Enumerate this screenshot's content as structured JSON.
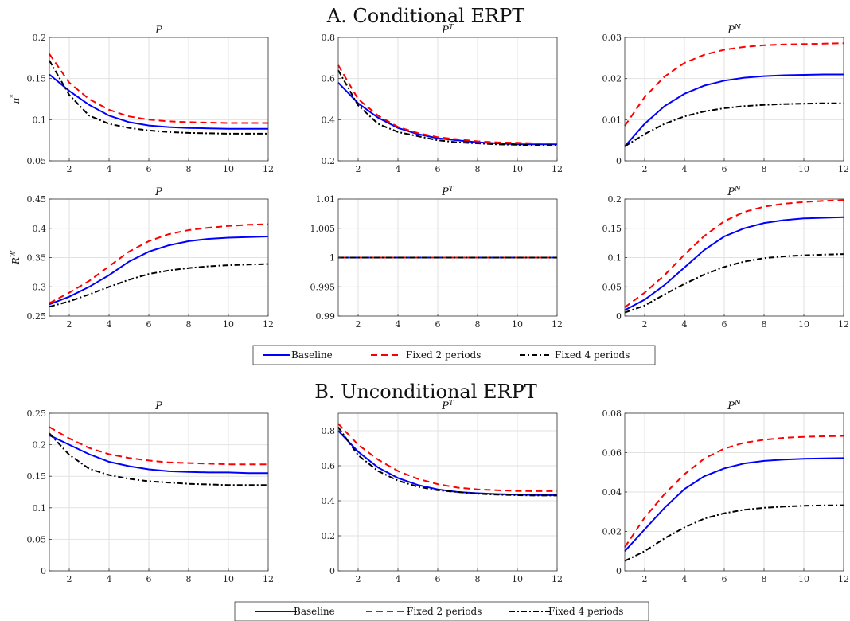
{
  "panels": {
    "A": {
      "title": "A. Conditional ERPT"
    },
    "B": {
      "title": "B. Unconditional ERPT"
    }
  },
  "plot_titles": {
    "P": "P",
    "PT_base": "P",
    "PT_sup": "T",
    "PN_base": "P",
    "PN_sup": "N"
  },
  "row_labels": {
    "pi": {
      "base": "π",
      "sup": "*"
    },
    "RW": {
      "base": "R",
      "sup": "W"
    }
  },
  "legend": {
    "entries": [
      {
        "label": "Baseline",
        "color": "#0000ff",
        "dash": "solid"
      },
      {
        "label": "Fixed 2 periods",
        "color": "#ff0000",
        "dash": "dashed"
      },
      {
        "label": "Fixed 4 periods",
        "color": "#000000",
        "dash": "dashdot"
      }
    ]
  },
  "chart_data": [
    {
      "type": "line",
      "panel": "A",
      "title": "P",
      "ylabel": "π*",
      "x": [
        1,
        2,
        3,
        4,
        5,
        6,
        7,
        8,
        9,
        10,
        11,
        12
      ],
      "xticks": [
        2,
        4,
        6,
        8,
        10,
        12
      ],
      "xlim": [
        1,
        12
      ],
      "ylim": [
        0.05,
        0.2
      ],
      "yticks": [
        0.05,
        0.1,
        0.15,
        0.2
      ],
      "ytick_labels": [
        "0.05",
        "0.1",
        "0.15",
        "0.2"
      ],
      "series": [
        {
          "name": "Baseline",
          "values": [
            0.155,
            0.135,
            0.118,
            0.105,
            0.097,
            0.093,
            0.091,
            0.09,
            0.0895,
            0.089,
            0.089,
            0.089
          ]
        },
        {
          "name": "Fixed 2 periods",
          "values": [
            0.18,
            0.145,
            0.125,
            0.112,
            0.104,
            0.1,
            0.098,
            0.097,
            0.0965,
            0.096,
            0.096,
            0.096
          ]
        },
        {
          "name": "Fixed 4 periods",
          "values": [
            0.172,
            0.13,
            0.105,
            0.095,
            0.09,
            0.087,
            0.085,
            0.084,
            0.0835,
            0.083,
            0.083,
            0.083
          ]
        }
      ]
    },
    {
      "type": "line",
      "panel": "A",
      "title": "P^T",
      "x": [
        1,
        2,
        3,
        4,
        5,
        6,
        7,
        8,
        9,
        10,
        11,
        12
      ],
      "xticks": [
        2,
        4,
        6,
        8,
        10,
        12
      ],
      "xlim": [
        1,
        12
      ],
      "ylim": [
        0.2,
        0.8
      ],
      "yticks": [
        0.2,
        0.4,
        0.6,
        0.8
      ],
      "ytick_labels": [
        "0.2",
        "0.4",
        "0.6",
        "0.8"
      ],
      "series": [
        {
          "name": "Baseline",
          "values": [
            0.58,
            0.48,
            0.41,
            0.36,
            0.33,
            0.31,
            0.3,
            0.29,
            0.285,
            0.28,
            0.28,
            0.28
          ]
        },
        {
          "name": "Fixed 2 periods",
          "values": [
            0.665,
            0.5,
            0.42,
            0.365,
            0.335,
            0.315,
            0.305,
            0.295,
            0.29,
            0.288,
            0.285,
            0.285
          ]
        },
        {
          "name": "Fixed 4 periods",
          "values": [
            0.64,
            0.47,
            0.38,
            0.34,
            0.32,
            0.3,
            0.29,
            0.285,
            0.28,
            0.278,
            0.276,
            0.276
          ]
        }
      ]
    },
    {
      "type": "line",
      "panel": "A",
      "title": "P^N",
      "x": [
        1,
        2,
        3,
        4,
        5,
        6,
        7,
        8,
        9,
        10,
        11,
        12
      ],
      "xticks": [
        2,
        4,
        6,
        8,
        10,
        12
      ],
      "xlim": [
        1,
        12
      ],
      "ylim": [
        0,
        0.03
      ],
      "yticks": [
        0,
        0.01,
        0.02,
        0.03
      ],
      "ytick_labels": [
        "0",
        "0.01",
        "0.02",
        "0.03"
      ],
      "series": [
        {
          "name": "Baseline",
          "values": [
            0.0035,
            0.009,
            0.0133,
            0.0163,
            0.0183,
            0.0195,
            0.0202,
            0.0206,
            0.0208,
            0.0209,
            0.021,
            0.021
          ]
        },
        {
          "name": "Fixed 2 periods",
          "values": [
            0.0085,
            0.0155,
            0.0205,
            0.0238,
            0.0258,
            0.027,
            0.0277,
            0.0281,
            0.0283,
            0.0284,
            0.0285,
            0.0286
          ]
        },
        {
          "name": "Fixed 4 periods",
          "values": [
            0.0035,
            0.0065,
            0.009,
            0.0108,
            0.012,
            0.0128,
            0.0133,
            0.0136,
            0.0138,
            0.0139,
            0.014,
            0.014
          ]
        }
      ]
    },
    {
      "type": "line",
      "panel": "A",
      "title": "P",
      "ylabel": "R^W",
      "x": [
        1,
        2,
        3,
        4,
        5,
        6,
        7,
        8,
        9,
        10,
        11,
        12
      ],
      "xticks": [
        2,
        4,
        6,
        8,
        10,
        12
      ],
      "xlim": [
        1,
        12
      ],
      "ylim": [
        0.25,
        0.45
      ],
      "yticks": [
        0.25,
        0.3,
        0.35,
        0.4,
        0.45
      ],
      "ytick_labels": [
        "0.25",
        "0.3",
        "0.35",
        "0.4",
        "0.45"
      ],
      "series": [
        {
          "name": "Baseline",
          "values": [
            0.27,
            0.283,
            0.3,
            0.32,
            0.343,
            0.36,
            0.371,
            0.378,
            0.382,
            0.384,
            0.385,
            0.386
          ]
        },
        {
          "name": "Fixed 2 periods",
          "values": [
            0.272,
            0.29,
            0.31,
            0.335,
            0.36,
            0.378,
            0.39,
            0.397,
            0.401,
            0.404,
            0.406,
            0.407
          ]
        },
        {
          "name": "Fixed 4 periods",
          "values": [
            0.266,
            0.275,
            0.287,
            0.3,
            0.312,
            0.322,
            0.328,
            0.332,
            0.335,
            0.337,
            0.338,
            0.339
          ]
        }
      ]
    },
    {
      "type": "line",
      "panel": "A",
      "title": "P^T",
      "x": [
        1,
        2,
        3,
        4,
        5,
        6,
        7,
        8,
        9,
        10,
        11,
        12
      ],
      "xticks": [
        2,
        4,
        6,
        8,
        10,
        12
      ],
      "xlim": [
        1,
        12
      ],
      "ylim": [
        0.99,
        1.01
      ],
      "yticks": [
        0.99,
        0.995,
        1,
        1.005,
        1.01
      ],
      "ytick_labels": [
        "0.99",
        "0.995",
        "1",
        "1.005",
        "1.01"
      ],
      "series": [
        {
          "name": "Baseline",
          "values": [
            1,
            1,
            1,
            1,
            1,
            1,
            1,
            1,
            1,
            1,
            1,
            1
          ]
        },
        {
          "name": "Fixed 2 periods",
          "values": [
            1,
            1,
            1,
            1,
            1,
            1,
            1,
            1,
            1,
            1,
            1,
            1
          ]
        },
        {
          "name": "Fixed 4 periods",
          "values": [
            1,
            1,
            1,
            1,
            1,
            1,
            1,
            1,
            1,
            1,
            1,
            1
          ]
        }
      ]
    },
    {
      "type": "line",
      "panel": "A",
      "title": "P^N",
      "x": [
        1,
        2,
        3,
        4,
        5,
        6,
        7,
        8,
        9,
        10,
        11,
        12
      ],
      "xticks": [
        2,
        4,
        6,
        8,
        10,
        12
      ],
      "xlim": [
        1,
        12
      ],
      "ylim": [
        0,
        0.2
      ],
      "yticks": [
        0,
        0.05,
        0.1,
        0.15,
        0.2
      ],
      "ytick_labels": [
        "0",
        "0.05",
        "0.1",
        "0.15",
        "0.2"
      ],
      "series": [
        {
          "name": "Baseline",
          "values": [
            0.01,
            0.028,
            0.053,
            0.083,
            0.113,
            0.136,
            0.15,
            0.159,
            0.164,
            0.167,
            0.168,
            0.169
          ]
        },
        {
          "name": "Fixed 2 periods",
          "values": [
            0.015,
            0.04,
            0.07,
            0.105,
            0.137,
            0.162,
            0.178,
            0.187,
            0.192,
            0.195,
            0.197,
            0.198
          ]
        },
        {
          "name": "Fixed 4 periods",
          "values": [
            0.006,
            0.018,
            0.037,
            0.055,
            0.071,
            0.084,
            0.093,
            0.099,
            0.102,
            0.104,
            0.105,
            0.106
          ]
        }
      ]
    },
    {
      "type": "line",
      "panel": "B",
      "title": "P",
      "x": [
        1,
        2,
        3,
        4,
        5,
        6,
        7,
        8,
        9,
        10,
        11,
        12
      ],
      "xticks": [
        2,
        4,
        6,
        8,
        10,
        12
      ],
      "xlim": [
        1,
        12
      ],
      "ylim": [
        0,
        0.25
      ],
      "yticks": [
        0,
        0.05,
        0.1,
        0.15,
        0.2,
        0.25
      ],
      "ytick_labels": [
        "0",
        "0.05",
        "0.1",
        "0.15",
        "0.2",
        "0.25"
      ],
      "series": [
        {
          "name": "Baseline",
          "values": [
            0.215,
            0.2,
            0.185,
            0.173,
            0.166,
            0.161,
            0.158,
            0.157,
            0.156,
            0.156,
            0.155,
            0.155
          ]
        },
        {
          "name": "Fixed 2 periods",
          "values": [
            0.228,
            0.21,
            0.195,
            0.185,
            0.179,
            0.175,
            0.172,
            0.171,
            0.17,
            0.169,
            0.169,
            0.169
          ]
        },
        {
          "name": "Fixed 4 periods",
          "values": [
            0.218,
            0.184,
            0.162,
            0.152,
            0.146,
            0.142,
            0.14,
            0.138,
            0.137,
            0.136,
            0.136,
            0.136
          ]
        }
      ]
    },
    {
      "type": "line",
      "panel": "B",
      "title": "P^T",
      "x": [
        1,
        2,
        3,
        4,
        5,
        6,
        7,
        8,
        9,
        10,
        11,
        12
      ],
      "xticks": [
        2,
        4,
        6,
        8,
        10,
        12
      ],
      "xlim": [
        1,
        12
      ],
      "ylim": [
        0,
        0.9
      ],
      "yticks": [
        0,
        0.2,
        0.4,
        0.6,
        0.8
      ],
      "ytick_labels": [
        "0",
        "0.2",
        "0.4",
        "0.6",
        "0.8"
      ],
      "series": [
        {
          "name": "Baseline",
          "values": [
            0.8,
            0.68,
            0.59,
            0.53,
            0.49,
            0.465,
            0.45,
            0.443,
            0.438,
            0.435,
            0.433,
            0.432
          ]
        },
        {
          "name": "Fixed 2 periods",
          "values": [
            0.84,
            0.72,
            0.635,
            0.57,
            0.525,
            0.495,
            0.475,
            0.465,
            0.46,
            0.456,
            0.455,
            0.455
          ]
        },
        {
          "name": "Fixed 4 periods",
          "values": [
            0.82,
            0.66,
            0.57,
            0.515,
            0.48,
            0.46,
            0.45,
            0.44,
            0.435,
            0.432,
            0.43,
            0.43
          ]
        }
      ]
    },
    {
      "type": "line",
      "panel": "B",
      "title": "P^N",
      "x": [
        1,
        2,
        3,
        4,
        5,
        6,
        7,
        8,
        9,
        10,
        11,
        12
      ],
      "xticks": [
        2,
        4,
        6,
        8,
        10,
        12
      ],
      "xlim": [
        1,
        12
      ],
      "ylim": [
        0,
        0.08
      ],
      "yticks": [
        0,
        0.02,
        0.04,
        0.06,
        0.08
      ],
      "ytick_labels": [
        "0",
        "0.02",
        "0.04",
        "0.06",
        "0.08"
      ],
      "series": [
        {
          "name": "Baseline",
          "values": [
            0.01,
            0.021,
            0.032,
            0.0415,
            0.048,
            0.052,
            0.0545,
            0.0558,
            0.0565,
            0.0569,
            0.0571,
            0.0572
          ]
        },
        {
          "name": "Fixed 2 periods",
          "values": [
            0.012,
            0.027,
            0.039,
            0.049,
            0.057,
            0.062,
            0.065,
            0.0665,
            0.0675,
            0.068,
            0.0683,
            0.0685
          ]
        },
        {
          "name": "Fixed 4 periods",
          "values": [
            0.005,
            0.01,
            0.0165,
            0.022,
            0.0265,
            0.0292,
            0.031,
            0.032,
            0.0326,
            0.033,
            0.0332,
            0.0333
          ]
        }
      ]
    }
  ]
}
